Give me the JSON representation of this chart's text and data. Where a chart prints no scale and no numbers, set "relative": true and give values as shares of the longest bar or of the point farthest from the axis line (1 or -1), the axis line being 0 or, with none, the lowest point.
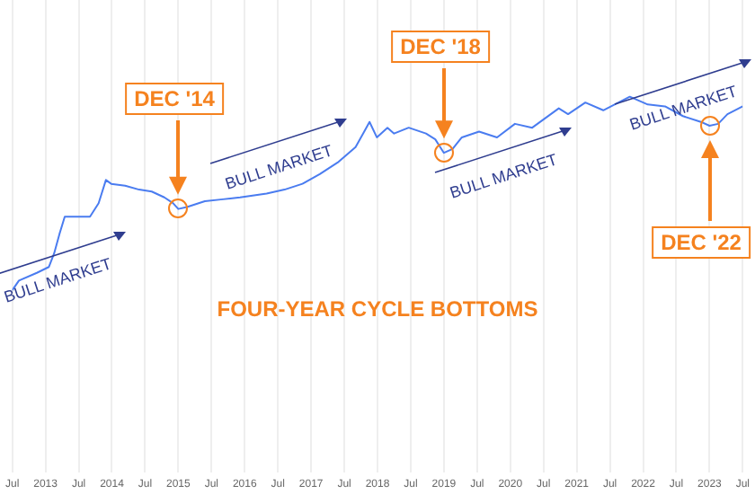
{
  "chart_data": {
    "type": "line",
    "title": "FOUR-YEAR CYCLE BOTTOMS",
    "relative": true,
    "grid": "x",
    "legend": false,
    "marker": "none",
    "x": [
      2012.5,
      2012.6,
      2012.87,
      2013.05,
      2013.13,
      2013.21,
      2013.29,
      2013.67,
      2013.8,
      2013.91,
      2013.99,
      2014.2,
      2014.41,
      2014.6,
      2014.79,
      2014.92,
      2015.0,
      2015.13,
      2015.4,
      2015.67,
      2015.93,
      2016.33,
      2016.6,
      2016.87,
      2017.13,
      2017.4,
      2017.67,
      2017.8,
      2017.88,
      2017.99,
      2018.15,
      2018.25,
      2018.47,
      2018.73,
      2018.87,
      2019.0,
      2019.13,
      2019.27,
      2019.53,
      2019.8,
      2020.07,
      2020.33,
      2020.73,
      2020.87,
      2021.13,
      2021.4,
      2021.8,
      2022.07,
      2022.33,
      2022.6,
      2022.87,
      2023.0,
      2023.13,
      2023.27,
      2023.5
    ],
    "xlim": [
      2012.5,
      2023.5
    ],
    "xticks": [
      {
        "value": 2012.5,
        "label": "Jul"
      },
      2013,
      {
        "value": 2013.5,
        "label": "Jul"
      },
      2014,
      {
        "value": 2014.5,
        "label": "Jul"
      },
      2015,
      {
        "value": 2015.5,
        "label": "Jul"
      },
      2016,
      {
        "value": 2016.5,
        "label": "Jul"
      },
      2017,
      {
        "value": 2017.5,
        "label": "Jul"
      },
      2018,
      {
        "value": 2018.5,
        "label": "Jul"
      },
      2019,
      {
        "value": 2019.5,
        "label": "Jul"
      },
      2020,
      {
        "value": 2020.5,
        "label": "Jul"
      },
      2021,
      {
        "value": 2021.5,
        "label": "Jul"
      },
      2022,
      {
        "value": 2022.5,
        "label": "Jul"
      },
      2023,
      {
        "value": 2023.5,
        "label": "Jul"
      }
    ],
    "series": [
      {
        "color": "#4a7cf0",
        "values": [
          0,
          0.05,
          0.09,
          0.12,
          0.19,
          0.29,
          0.38,
          0.38,
          0.45,
          0.57,
          0.55,
          0.54,
          0.52,
          0.51,
          0.48,
          0.45,
          0.42,
          0.43,
          0.46,
          0.47,
          0.48,
          0.5,
          0.52,
          0.55,
          0.6,
          0.66,
          0.74,
          0.82,
          0.87,
          0.79,
          0.84,
          0.81,
          0.84,
          0.81,
          0.78,
          0.71,
          0.73,
          0.79,
          0.82,
          0.79,
          0.86,
          0.84,
          0.94,
          0.91,
          0.97,
          0.93,
          1,
          0.96,
          0.95,
          0.9,
          0.87,
          0.85,
          0.86,
          0.91,
          0.95
        ]
      }
    ],
    "annotations": [
      "DEC '14",
      "DEC '18",
      "DEC '22",
      "BULL MARKET",
      "BULL MARKET",
      "BULL MARKET",
      "BULL MARKET"
    ]
  }
}
